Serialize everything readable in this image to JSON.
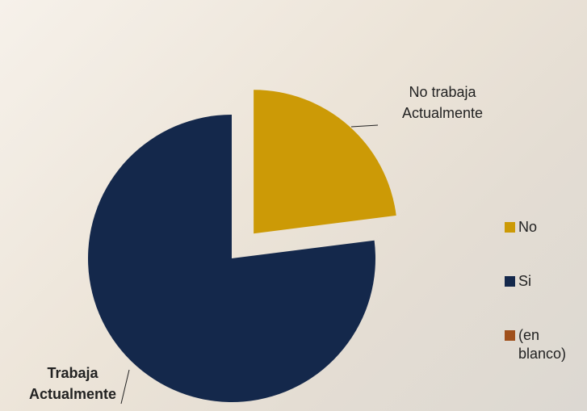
{
  "chart_data": {
    "type": "pie",
    "categories": [
      "No",
      "Si",
      "(en blanco)"
    ],
    "values": [
      23,
      77,
      0
    ],
    "colors": [
      "#cc9a06",
      "#14284b",
      "#a0501c"
    ],
    "data_labels": [
      [
        "No trabaja",
        "Actualmente"
      ],
      [
        "Trabaja",
        "Actualmente"
      ],
      null
    ],
    "exploded": [
      true,
      false,
      false
    ],
    "legend": "right"
  }
}
